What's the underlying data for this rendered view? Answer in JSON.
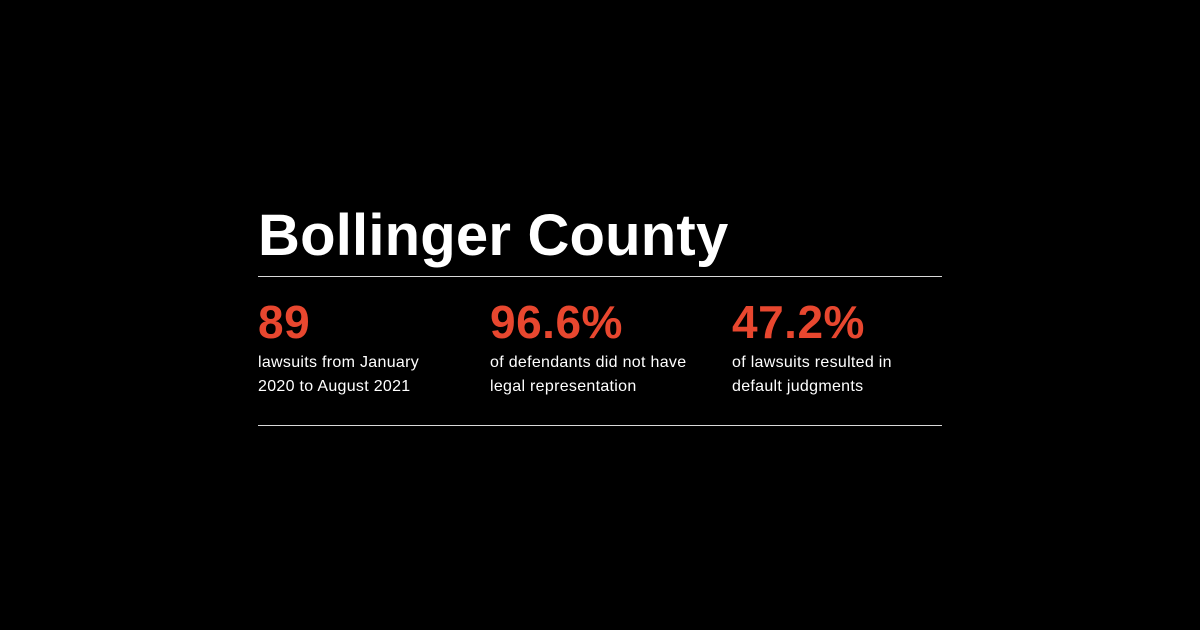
{
  "title": "Bollinger County",
  "accent_color": "#e8472f",
  "stats": [
    {
      "value": "89",
      "description": "lawsuits from January 2020 to August 2021"
    },
    {
      "value": "96.6%",
      "description": "of defendants did not have legal representation"
    },
    {
      "value": "47.2%",
      "description": "of lawsuits resulted in default judgments"
    }
  ]
}
